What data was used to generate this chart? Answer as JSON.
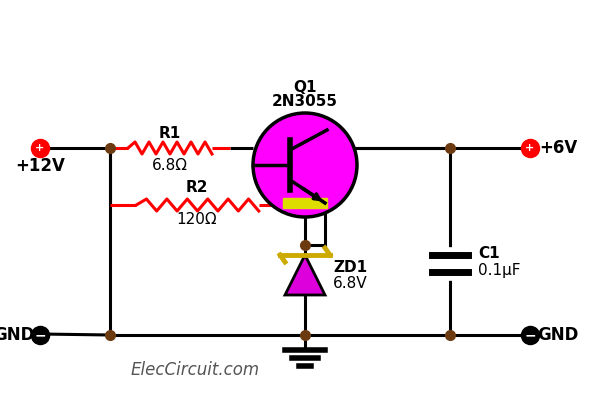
{
  "bg_color": "#ffffff",
  "wire_color": "#000000",
  "resistor_color": "#ff0000",
  "dot_color": "#6B3A10",
  "transistor_fill": "#ff00ff",
  "transistor_border": "#000000",
  "zener_fill": "#dd00dd",
  "zener_bar_color": "#ccaa00",
  "capacitor_color": "#000000",
  "terminal_plus_color": "#ff0000",
  "terminal_minus_color": "#000000",
  "label_color": "#000000",
  "watermark": "ElecCircuit.com",
  "labels": {
    "R1": "R1",
    "R1_val": "6.8Ω",
    "R2": "R2",
    "R2_val": "120Ω",
    "Q1": "Q1",
    "Q1_val": "2N3055",
    "ZD1": "ZD1",
    "ZD1_val": "6.8V",
    "C1": "C1",
    "C1_val": "0.1μF",
    "V_in": "+12V",
    "V_out": "+6V",
    "GND_left": "GND",
    "GND_right": "GND"
  }
}
